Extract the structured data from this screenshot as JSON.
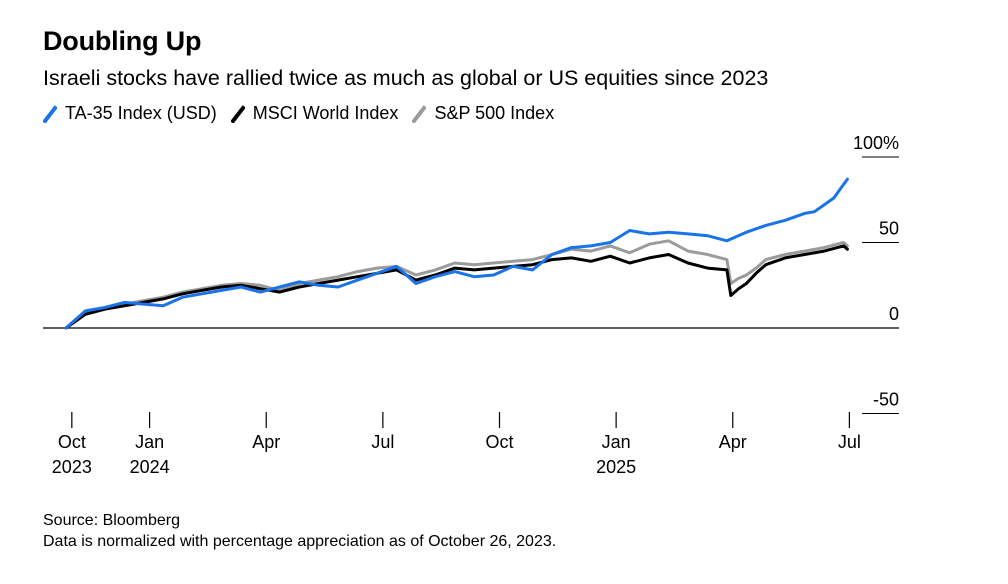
{
  "title": "Doubling Up",
  "subtitle": "Israeli stocks have rallied twice as much as global or US equities since 2023",
  "source": "Source: Bloomberg",
  "note": "Data is normalized with percentage appreciation as of October 26, 2023.",
  "colors": {
    "ta35": "#1a73e8",
    "msci": "#000000",
    "sp500": "#9b9b9b"
  },
  "chart_data": {
    "type": "line",
    "title": "Doubling Up",
    "subtitle": "Israeli stocks have rallied twice as much as global or US equities since 2023",
    "xlabel": "",
    "ylabel": "",
    "x_unit": "months since Oct 26, 2023",
    "xlim": [
      0,
      20.5
    ],
    "ylim": [
      -60,
      100
    ],
    "y_ticks": [
      {
        "value": 100,
        "label": "100%"
      },
      {
        "value": 50,
        "label": "50"
      },
      {
        "value": 0,
        "label": "0"
      },
      {
        "value": -50,
        "label": "-50"
      }
    ],
    "x_ticks": [
      {
        "value": 0.15,
        "label": "Oct",
        "sublabel": "2023"
      },
      {
        "value": 2.15,
        "label": "Jan",
        "sublabel": "2024"
      },
      {
        "value": 5.15,
        "label": "Apr",
        "sublabel": ""
      },
      {
        "value": 8.15,
        "label": "Jul",
        "sublabel": ""
      },
      {
        "value": 11.15,
        "label": "Oct",
        "sublabel": ""
      },
      {
        "value": 14.15,
        "label": "Jan",
        "sublabel": "2025"
      },
      {
        "value": 17.15,
        "label": "Apr",
        "sublabel": ""
      },
      {
        "value": 20.15,
        "label": "Jul",
        "sublabel": ""
      }
    ],
    "legend_position": "top-left",
    "series": [
      {
        "name": "S&P 500 Index",
        "color": "#9b9b9b",
        "x": [
          0,
          0.5,
          1,
          1.5,
          2,
          2.5,
          3,
          3.5,
          4,
          4.5,
          5,
          5.5,
          6,
          6.5,
          7,
          7.5,
          8,
          8.5,
          9,
          9.5,
          10,
          10.5,
          11,
          11.5,
          12,
          12.5,
          13,
          13.5,
          14,
          14.5,
          15,
          15.5,
          16,
          16.5,
          17,
          17.1,
          17.3,
          17.5,
          17.75,
          18,
          18.5,
          19,
          19.5,
          20,
          20.1
        ],
        "values": [
          0,
          9,
          12,
          14,
          16,
          18,
          21,
          23,
          25,
          26,
          25,
          22,
          26,
          28,
          30,
          33,
          35,
          36,
          31,
          34,
          38,
          37,
          38,
          39,
          40,
          43,
          46,
          45,
          48,
          44,
          49,
          51,
          45,
          43,
          40,
          26,
          29,
          31,
          35,
          40,
          43,
          45,
          47,
          50,
          48
        ]
      },
      {
        "name": "MSCI World Index",
        "color": "#000000",
        "x": [
          0,
          0.5,
          1,
          1.5,
          2,
          2.5,
          3,
          3.5,
          4,
          4.5,
          5,
          5.5,
          6,
          6.5,
          7,
          7.5,
          8,
          8.5,
          9,
          9.5,
          10,
          10.5,
          11,
          11.5,
          12,
          12.5,
          13,
          13.5,
          14,
          14.5,
          15,
          15.5,
          16,
          16.5,
          17,
          17.1,
          17.3,
          17.5,
          17.75,
          18,
          18.5,
          19,
          19.5,
          20,
          20.1
        ],
        "values": [
          0,
          8,
          11,
          13,
          15,
          17,
          20,
          22,
          24,
          25,
          23,
          21,
          24,
          26,
          28,
          30,
          32,
          34,
          28,
          31,
          35,
          34,
          35,
          36,
          37,
          40,
          41,
          39,
          42,
          38,
          41,
          43,
          38,
          35,
          34,
          19,
          23,
          26,
          32,
          37,
          41,
          43,
          45,
          48,
          46
        ]
      },
      {
        "name": "TA-35 Index (USD)",
        "color": "#1a73e8",
        "x": [
          0,
          0.5,
          1,
          1.5,
          2,
          2.5,
          3,
          3.5,
          4,
          4.5,
          5,
          5.5,
          6,
          6.5,
          7,
          7.5,
          8,
          8.5,
          9,
          9.5,
          10,
          10.5,
          11,
          11.5,
          12,
          12.5,
          13,
          13.5,
          14,
          14.5,
          15,
          15.5,
          16,
          16.5,
          17,
          17.5,
          18,
          18.5,
          19,
          19.25,
          19.5,
          19.75,
          20,
          20.1
        ],
        "values": [
          0,
          10,
          12,
          15,
          14,
          13,
          18,
          20,
          22,
          24,
          21,
          24,
          27,
          25,
          24,
          28,
          32,
          36,
          26,
          30,
          33,
          30,
          31,
          36,
          34,
          43,
          47,
          48,
          50,
          57,
          55,
          56,
          55,
          54,
          51,
          56,
          60,
          63,
          67,
          68,
          72,
          76,
          84,
          87
        ]
      }
    ]
  }
}
